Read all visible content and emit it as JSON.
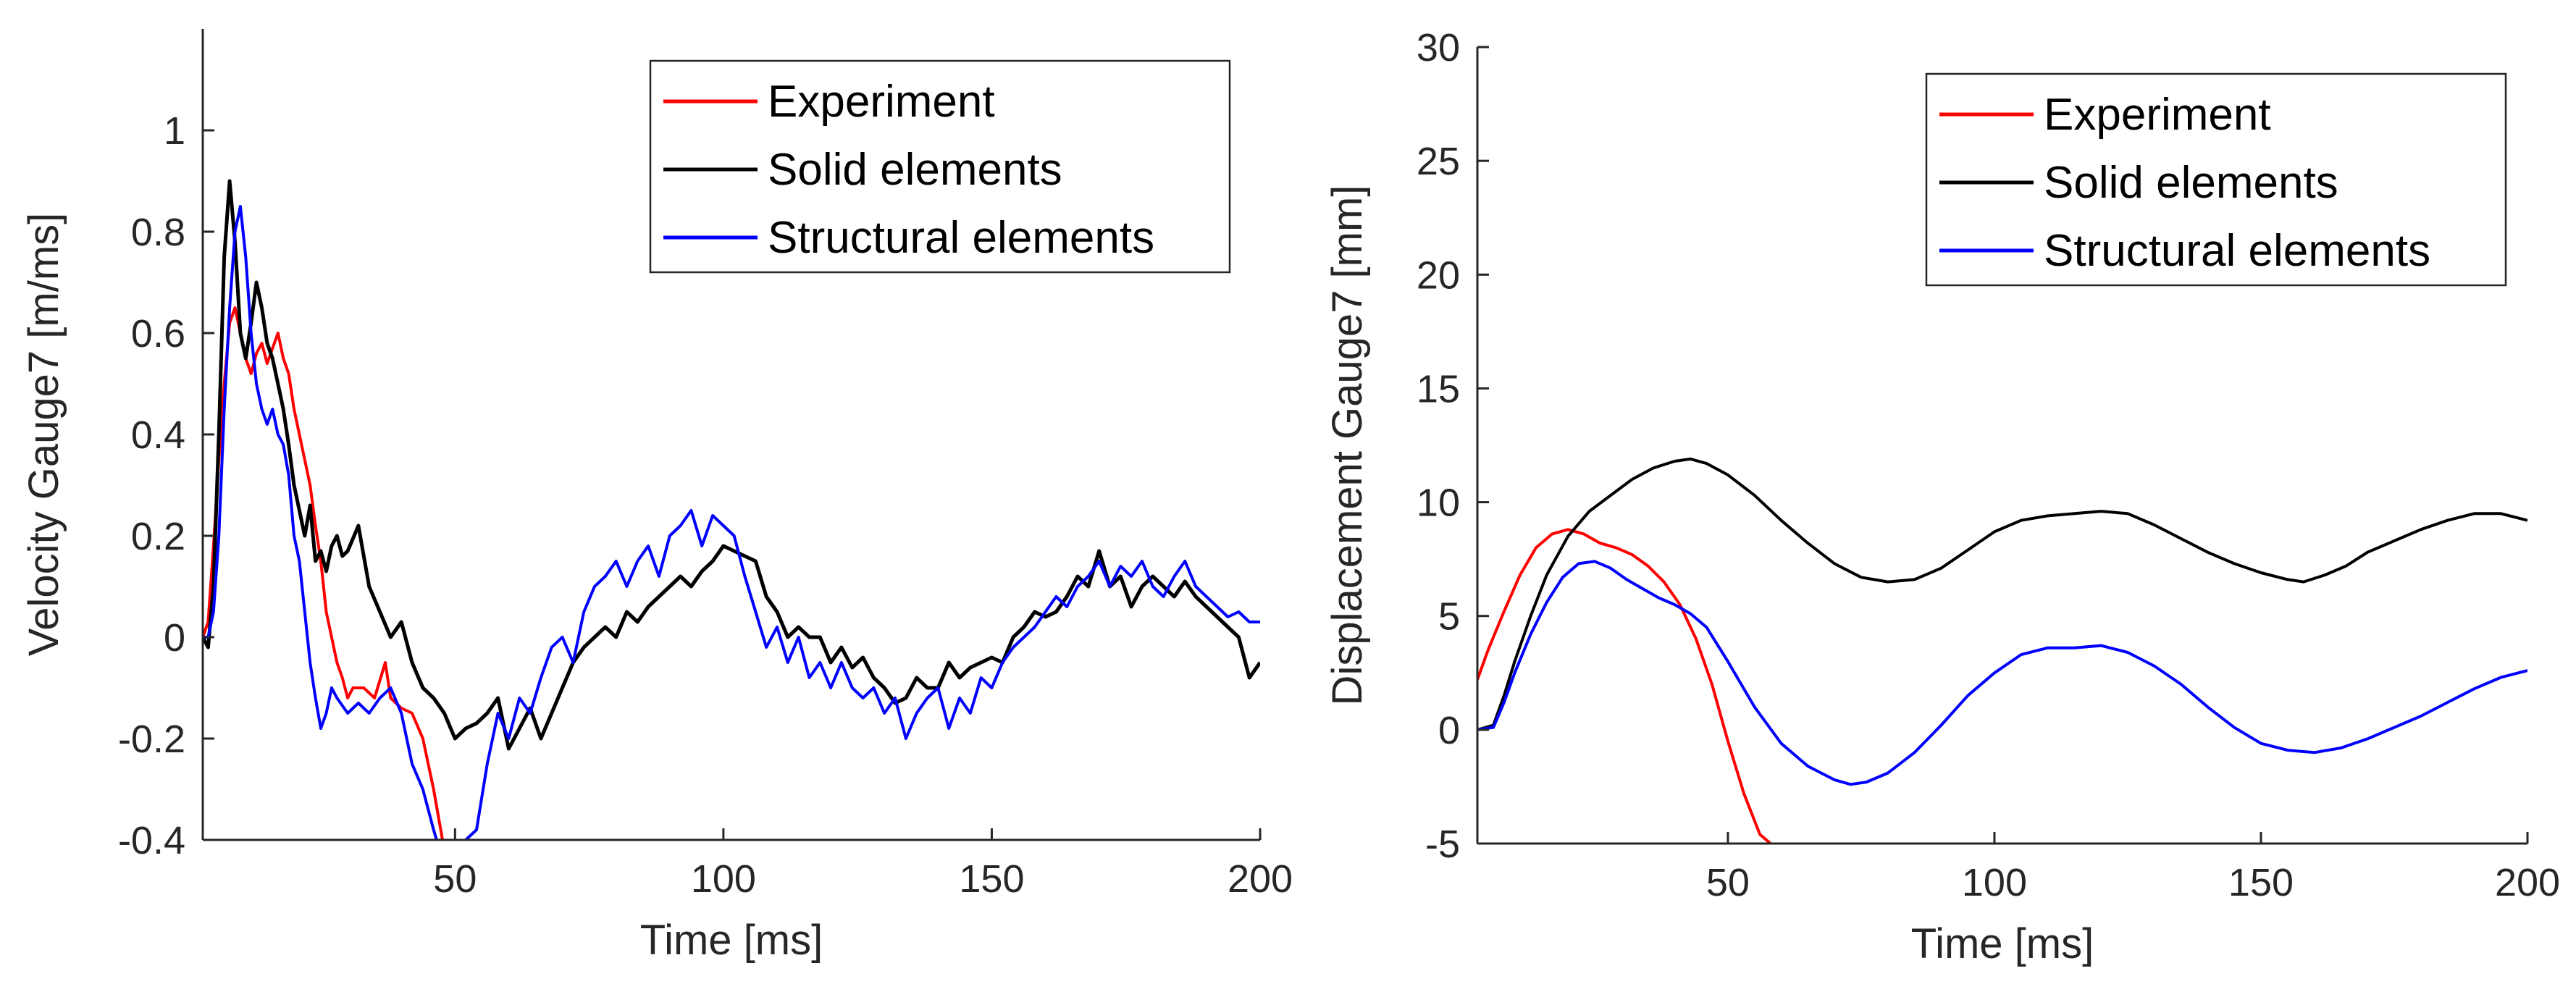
{
  "chart_data": [
    {
      "type": "line",
      "title": "",
      "xlabel": "Time [ms]",
      "ylabel": "Velocity Gauge7 [m/ms]",
      "xlim": [
        3,
        200
      ],
      "ylim": [
        -0.4,
        1.2
      ],
      "xticks": [
        50,
        100,
        150,
        200
      ],
      "xtick_labels": [
        "50",
        "100",
        "150",
        "200"
      ],
      "yticks": [
        -0.4,
        -0.2,
        0,
        0.2,
        0.4,
        0.6,
        0.8,
        1
      ],
      "ytick_labels": [
        "-0.4",
        "-0.2",
        "0",
        "0.2",
        "0.4",
        "0.6",
        "0.8",
        "1"
      ],
      "legend_position": "top-right",
      "series": [
        {
          "name": "Experiment",
          "color": "#ff0000",
          "x": [
            3,
            4,
            5,
            6,
            7,
            8,
            9,
            10,
            11,
            12,
            13,
            14,
            15,
            16,
            17,
            18,
            19,
            20,
            21,
            22,
            23,
            24,
            25,
            26,
            27,
            28,
            29,
            30,
            31,
            33,
            35,
            37,
            38,
            40,
            42,
            44,
            46,
            47,
            48
          ],
          "y": [
            0.0,
            0.03,
            0.18,
            0.35,
            0.5,
            0.62,
            0.65,
            0.6,
            0.55,
            0.52,
            0.56,
            0.58,
            0.54,
            0.57,
            0.6,
            0.55,
            0.52,
            0.45,
            0.4,
            0.35,
            0.3,
            0.22,
            0.15,
            0.05,
            0.0,
            -0.05,
            -0.08,
            -0.12,
            -0.1,
            -0.1,
            -0.12,
            -0.05,
            -0.12,
            -0.14,
            -0.15,
            -0.2,
            -0.3,
            -0.36,
            -0.42
          ]
        },
        {
          "name": "Solid elements",
          "color": "#000000",
          "x": [
            3,
            4,
            5,
            6,
            7,
            8,
            9,
            10,
            11,
            12,
            13,
            14,
            15,
            16,
            17,
            18,
            19,
            20,
            21,
            22,
            23,
            24,
            25,
            26,
            27,
            28,
            29,
            30,
            32,
            34,
            36,
            38,
            40,
            42,
            44,
            46,
            48,
            50,
            52,
            54,
            56,
            58,
            60,
            62,
            64,
            66,
            68,
            70,
            72,
            74,
            76,
            78,
            80,
            82,
            84,
            86,
            88,
            90,
            92,
            94,
            96,
            98,
            100,
            102,
            104,
            106,
            108,
            110,
            112,
            114,
            116,
            118,
            120,
            122,
            124,
            126,
            128,
            130,
            132,
            134,
            136,
            138,
            140,
            142,
            144,
            146,
            148,
            150,
            152,
            154,
            156,
            158,
            160,
            162,
            164,
            166,
            168,
            170,
            172,
            174,
            176,
            178,
            180,
            182,
            184,
            186,
            188,
            190,
            192,
            194,
            196,
            198,
            200
          ],
          "y": [
            0.0,
            -0.02,
            0.1,
            0.4,
            0.75,
            0.9,
            0.78,
            0.6,
            0.55,
            0.62,
            0.7,
            0.65,
            0.58,
            0.55,
            0.5,
            0.45,
            0.38,
            0.3,
            0.25,
            0.2,
            0.26,
            0.15,
            0.17,
            0.13,
            0.18,
            0.2,
            0.16,
            0.17,
            0.22,
            0.1,
            0.05,
            0.0,
            0.03,
            -0.05,
            -0.1,
            -0.12,
            -0.15,
            -0.2,
            -0.18,
            -0.17,
            -0.15,
            -0.12,
            -0.22,
            -0.18,
            -0.14,
            -0.2,
            -0.15,
            -0.1,
            -0.05,
            -0.02,
            0.0,
            0.02,
            0.0,
            0.05,
            0.03,
            0.06,
            0.08,
            0.1,
            0.12,
            0.1,
            0.13,
            0.15,
            0.18,
            0.17,
            0.16,
            0.15,
            0.08,
            0.05,
            0.0,
            0.02,
            0.0,
            0.0,
            -0.05,
            -0.02,
            -0.06,
            -0.04,
            -0.08,
            -0.1,
            -0.13,
            -0.12,
            -0.08,
            -0.1,
            -0.1,
            -0.05,
            -0.08,
            -0.06,
            -0.05,
            -0.04,
            -0.05,
            0.0,
            0.02,
            0.05,
            0.04,
            0.05,
            0.08,
            0.12,
            0.1,
            0.17,
            0.1,
            0.12,
            0.06,
            0.1,
            0.12,
            0.1,
            0.08,
            0.11,
            0.08,
            0.06,
            0.04,
            0.02,
            0.0,
            -0.08,
            -0.05
          ]
        },
        {
          "name": "Structural elements",
          "color": "#0000ff",
          "x": [
            3,
            4,
            5,
            6,
            7,
            8,
            9,
            10,
            11,
            12,
            13,
            14,
            15,
            16,
            17,
            18,
            19,
            20,
            21,
            22,
            23,
            24,
            25,
            26,
            27,
            28,
            30,
            32,
            34,
            36,
            38,
            40,
            42,
            44,
            46,
            48,
            50,
            52,
            54,
            56,
            58,
            60,
            62,
            64,
            66,
            68,
            70,
            72,
            74,
            76,
            78,
            80,
            82,
            84,
            86,
            88,
            90,
            92,
            94,
            96,
            98,
            100,
            102,
            104,
            106,
            108,
            110,
            112,
            114,
            116,
            118,
            120,
            122,
            124,
            126,
            128,
            130,
            132,
            134,
            136,
            138,
            140,
            142,
            144,
            146,
            148,
            150,
            152,
            154,
            156,
            158,
            160,
            162,
            164,
            166,
            168,
            170,
            172,
            174,
            176,
            178,
            180,
            182,
            184,
            186,
            188,
            190,
            192,
            194,
            196,
            198,
            200
          ],
          "y": [
            0.0,
            0.0,
            0.05,
            0.2,
            0.45,
            0.65,
            0.8,
            0.85,
            0.75,
            0.6,
            0.5,
            0.45,
            0.42,
            0.45,
            0.4,
            0.38,
            0.32,
            0.2,
            0.15,
            0.05,
            -0.05,
            -0.12,
            -0.18,
            -0.15,
            -0.1,
            -0.12,
            -0.15,
            -0.13,
            -0.15,
            -0.12,
            -0.1,
            -0.15,
            -0.25,
            -0.3,
            -0.38,
            -0.45,
            -0.48,
            -0.4,
            -0.38,
            -0.25,
            -0.15,
            -0.2,
            -0.12,
            -0.15,
            -0.08,
            -0.02,
            0.0,
            -0.05,
            0.05,
            0.1,
            0.12,
            0.15,
            0.1,
            0.15,
            0.18,
            0.12,
            0.2,
            0.22,
            0.25,
            0.18,
            0.24,
            0.22,
            0.2,
            0.12,
            0.05,
            -0.02,
            0.02,
            -0.05,
            0.0,
            -0.08,
            -0.05,
            -0.1,
            -0.05,
            -0.1,
            -0.12,
            -0.1,
            -0.15,
            -0.12,
            -0.2,
            -0.15,
            -0.12,
            -0.1,
            -0.18,
            -0.12,
            -0.15,
            -0.08,
            -0.1,
            -0.05,
            -0.02,
            0.0,
            0.02,
            0.05,
            0.08,
            0.06,
            0.1,
            0.12,
            0.15,
            0.1,
            0.14,
            0.12,
            0.15,
            0.1,
            0.08,
            0.12,
            0.15,
            0.1,
            0.08,
            0.06,
            0.04,
            0.05,
            0.03,
            0.03
          ]
        }
      ]
    },
    {
      "type": "line",
      "title": "",
      "xlabel": "Time [ms]",
      "ylabel": "Displacement Gauge7 [mm]",
      "xlim": [
        3,
        200
      ],
      "ylim": [
        -5,
        30
      ],
      "xticks": [
        50,
        100,
        150,
        200
      ],
      "xtick_labels": [
        "50",
        "100",
        "150",
        "200"
      ],
      "yticks": [
        -5,
        0,
        5,
        10,
        15,
        20,
        25,
        30
      ],
      "ytick_labels": [
        "-5",
        "0",
        "5",
        "10",
        "15",
        "20",
        "25",
        "30"
      ],
      "legend_position": "top-right",
      "series": [
        {
          "name": "Experiment",
          "color": "#ff0000",
          "x": [
            3,
            5,
            8,
            11,
            14,
            17,
            20,
            23,
            26,
            29,
            32,
            35,
            38,
            41,
            44,
            47,
            50,
            53,
            56,
            58
          ],
          "y": [
            2.2,
            3.5,
            5.2,
            6.8,
            8.0,
            8.6,
            8.8,
            8.6,
            8.2,
            8.0,
            7.7,
            7.2,
            6.5,
            5.5,
            4.0,
            2.0,
            -0.5,
            -2.8,
            -4.6,
            -5.0
          ]
        },
        {
          "name": "Solid elements",
          "color": "#000000",
          "x": [
            3,
            6,
            8,
            10,
            13,
            16,
            20,
            24,
            28,
            32,
            36,
            40,
            43,
            46,
            50,
            55,
            60,
            65,
            70,
            75,
            80,
            85,
            90,
            95,
            100,
            105,
            110,
            115,
            120,
            125,
            130,
            135,
            140,
            145,
            150,
            155,
            158,
            162,
            166,
            170,
            175,
            180,
            185,
            190,
            195,
            200
          ],
          "y": [
            0.0,
            0.2,
            1.5,
            3.0,
            5.0,
            6.8,
            8.5,
            9.6,
            10.3,
            11.0,
            11.5,
            11.8,
            11.9,
            11.7,
            11.2,
            10.3,
            9.2,
            8.2,
            7.3,
            6.7,
            6.5,
            6.6,
            7.1,
            7.9,
            8.7,
            9.2,
            9.4,
            9.5,
            9.6,
            9.5,
            9.0,
            8.4,
            7.8,
            7.3,
            6.9,
            6.6,
            6.5,
            6.8,
            7.2,
            7.8,
            8.3,
            8.8,
            9.2,
            9.5,
            9.5,
            9.2
          ]
        },
        {
          "name": "Structural elements",
          "color": "#0000ff",
          "x": [
            3,
            6,
            8,
            10,
            13,
            16,
            19,
            22,
            25,
            28,
            31,
            34,
            37,
            40,
            43,
            46,
            50,
            55,
            60,
            65,
            70,
            73,
            76,
            80,
            85,
            90,
            95,
            100,
            105,
            110,
            115,
            120,
            125,
            130,
            135,
            140,
            145,
            150,
            155,
            160,
            165,
            170,
            175,
            180,
            185,
            190,
            195,
            200
          ],
          "y": [
            0.0,
            0.1,
            1.2,
            2.5,
            4.2,
            5.6,
            6.7,
            7.3,
            7.4,
            7.1,
            6.6,
            6.2,
            5.8,
            5.5,
            5.1,
            4.5,
            3.0,
            1.0,
            -0.6,
            -1.6,
            -2.2,
            -2.4,
            -2.3,
            -1.9,
            -1.0,
            0.2,
            1.5,
            2.5,
            3.3,
            3.6,
            3.6,
            3.7,
            3.4,
            2.8,
            2.0,
            1.0,
            0.1,
            -0.6,
            -0.9,
            -1.0,
            -0.8,
            -0.4,
            0.1,
            0.6,
            1.2,
            1.8,
            2.3,
            2.6
          ]
        }
      ]
    }
  ]
}
